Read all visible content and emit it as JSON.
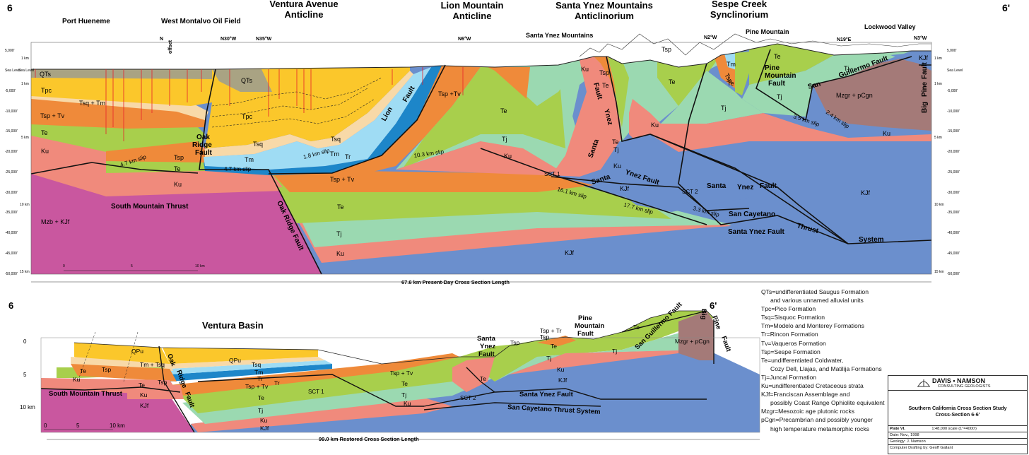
{
  "top": {
    "end_left": "6",
    "end_right": "6'",
    "headings": {
      "port_hueneme": "Port Hueneme",
      "west_montalvo": "West Montalvo Oil Field",
      "ventura_1": "Ventura Avenue",
      "ventura_2": "Anticline",
      "lion_1": "Lion Mountain",
      "lion_2": "Anticline",
      "syinez_1": "Santa Ynez Mountains",
      "syinez_2": "Anticlinorium",
      "sespe_1": "Sespe Creek",
      "sespe_2": "Synclinorium",
      "santa_ynez_mtns": "Santa Ynez Mountains",
      "pine_mountain": "Pine Mountain",
      "lockwood": "Lockwood Valley"
    },
    "bearings": {
      "n": "N",
      "offset": "offset",
      "n30w": "N30°W",
      "n35w": "N35°W",
      "n6w": "N6°W",
      "n2w": "N2°W",
      "n19e": "N19°E",
      "n3w": "N3°W"
    },
    "scale_ft": [
      "5,000'",
      "Sea Level",
      "-5,000'",
      "-10,000'",
      "-15,000'",
      "-20,000'",
      "-25,000'",
      "-30,000'",
      "-35,000'",
      "-40,000'",
      "-45,000'",
      "-50,000'"
    ],
    "scale_km": [
      "1 km",
      "Sea Level",
      "1 km",
      "5 km",
      "10 km",
      "15 km"
    ],
    "scale_ft_right": [
      "5,000'",
      "Sea Level",
      "-5,000'",
      "-10,000'",
      "-15,000'",
      "-20,000'",
      "-25,000'",
      "-30,000'",
      "-35,000'",
      "-40,000'",
      "-45,000'",
      "-50,000'"
    ],
    "scale_km_right": [
      "1 km",
      "1 km",
      "5 km",
      "10 km",
      "15 km"
    ],
    "scale_bar": [
      "0",
      "5",
      "10 km"
    ],
    "units": {
      "qts": "QTs",
      "tpc_left": "Tpc",
      "tsq_tm": "Tsq + Tm",
      "tsp_tv_left": "Tsp + Tv",
      "te_left": "Te",
      "ku_left": "Ku",
      "tsp_mid": "Tsp",
      "te_mid": "Te",
      "ku_mid": "Ku",
      "mzb_kjf": "Mzb + KJf",
      "qts_mid": "QTs",
      "tpc_mid": "Tpc",
      "tsq": "Tsq",
      "tsq2": "Tsq",
      "tm": "Tm",
      "tm2": "Tm",
      "tr": "Tr",
      "tsp_tv_lion": "Tsp +Tv",
      "te_lion": "Te",
      "tj_lion": "Tj",
      "ku_lion": "Ku",
      "tsp_tv_deep": "Tsp + Tv",
      "te_deep": "Te",
      "tj_deep": "Tj",
      "ku_deep": "Ku",
      "kjf_deep": "KJf",
      "ku_syn": "Ku",
      "tsp_syn": "Tsp",
      "te_syn": "Te",
      "tj_syn": "Tj",
      "ku_syn2": "Ku",
      "te_syn2": "Te",
      "tj_syn2": "Tj",
      "ku_syn3": "Ku",
      "kjf_syn": "KJf",
      "tsp_top": "Tsp",
      "te_sespe": "Te",
      "tm_sespe": "Tm",
      "te_sespe2": "Te",
      "tsp_sespe": "Tsp",
      "tj_sespe": "Tj",
      "ku_sespe": "Ku",
      "te_pine": "Te",
      "tj_pine": "Tj",
      "tj_pine2": "Tj",
      "mzgr": "Mzgr + pCgn",
      "kjf_lock": "KJf",
      "ku_right": "Ku",
      "kjf_right": "KJf"
    },
    "faults": {
      "oak_ridge_1": "Oak",
      "oak_ridge_2": "Ridge",
      "oak_ridge_3": "Fault",
      "oak_ridge_deep": "Oak Ridge Fault",
      "south_mtn": "South Mountain Thrust",
      "lion_fault_1": "Lion",
      "lion_fault_2": "Fault",
      "sy_fault_1": "Ynez",
      "sy_fault_2": "Fault",
      "sy_fault_3": "Santa",
      "sy_main_1": "Santa",
      "sy_main_2": "Ynez Fault",
      "sct1": "SCT 1",
      "sct2": "SCT 2",
      "sy_fault_r1": "Santa",
      "sy_fault_r2": "Ynez",
      "sy_fault_r3": "Fault",
      "san_cay": "San Cayetano",
      "thrust": "Thrust",
      "system": "System",
      "sy_fault_low": "Santa Ynez Fault",
      "pine_fault_1": "Pine",
      "pine_fault_2": "Mountain",
      "pine_fault_3": "Fault",
      "sg_fault_1": "San",
      "sg_fault_2": "Guillermo Fault",
      "big_pine_1": "Big",
      "big_pine_2": "Pine",
      "big_pine_3": "Fault"
    },
    "slips": {
      "s47a": "4.7 km slip",
      "s47b": "4.7 km slip",
      "s18": "1.8 km slip",
      "s103": "10.3 km slip",
      "s161": "16.1 km slip",
      "s177": "17.7 km slip",
      "s33": "3.3 km slip",
      "s35": "3.5 km slip",
      "s24": "2.4 km slip"
    },
    "length": "67.6 km Present-Day Cross Section Length"
  },
  "bottom": {
    "end_left": "6",
    "end_right": "6'",
    "heading": "Ventura Basin",
    "scale_left": [
      "0",
      "5",
      "10 km"
    ],
    "scale_bar": [
      "0",
      "5",
      "10 km"
    ],
    "labels": {
      "qpu1": "QPu",
      "qpu2": "QPu",
      "tm_tsq": "Tm + Tsq",
      "tsq": "Tsq",
      "tm": "Tm",
      "tr": "Tr",
      "tr2": "Tr",
      "te1": "Te",
      "tsp1": "Tsp",
      "ku1": "Ku",
      "tsp2": "Tsp",
      "te2": "Te",
      "tsp_tv": "Tsp + Tv",
      "tsp_tv2": "Tsp + Tv",
      "te3": "Te",
      "te4": "Te",
      "tj1": "Tj",
      "tj2": "Tj",
      "ku2": "Ku",
      "ku3": "Ku",
      "ku4": "Ku",
      "kjf1": "KJf",
      "kjf2": "KJf",
      "te5": "Te",
      "tsp3": "Tsp",
      "tsp_tr": "Tsp + Tr",
      "tsp4": "Tsp",
      "te6": "Te",
      "tj3": "Tj",
      "ku5": "Ku",
      "kjf3": "KJf",
      "tj4": "Tj",
      "te7": "Te",
      "mzgr": "Mzgr + pCgn"
    },
    "faults": {
      "oak": "Oak",
      "ridge": "Ridge",
      "fault": "Fault",
      "south_mtn": "South Mountain Thrust",
      "sct1": "SCT 1",
      "sct2": "SCT 2",
      "sy1": "Santa",
      "sy2": "Ynez",
      "sy3": "Fault",
      "pine1": "Pine",
      "pine2": "Mountain",
      "pine3": "Fault",
      "sy_fault": "Santa Ynez Fault",
      "san_cay": "San   Cayetano Thrust System",
      "sg": "San Guillermo Fault",
      "big": "Big",
      "pine": "Pine",
      "fault2": "Fault"
    },
    "length": "99.0 km Restored Cross Section Length"
  },
  "legend": [
    {
      "text": "QTs=undifferentiated Saugus Formation",
      "indent": false
    },
    {
      "text": "and various unnamed alluvial units",
      "indent": true
    },
    {
      "text": "Tpc=Pico Formation",
      "indent": false
    },
    {
      "text": "Tsq=Sisquoc Formation",
      "indent": false
    },
    {
      "text": "Tm=Modelo and Monterey Formations",
      "indent": false
    },
    {
      "text": "Tr=Rincon Formation",
      "indent": false
    },
    {
      "text": "Tv=Vaqueros Formation",
      "indent": false
    },
    {
      "text": "Tsp=Sespe Formation",
      "indent": false
    },
    {
      "text": "Te=undifferentiated Coldwater,",
      "indent": false
    },
    {
      "text": "Cozy Dell, Llajas, and Matilija Formations",
      "indent": true
    },
    {
      "text": "Tj=Juncal Formation",
      "indent": false
    },
    {
      "text": "Ku=undifferentiated Cretaceous strata",
      "indent": false
    },
    {
      "text": "KJf=Franciscan Assemblage and",
      "indent": false
    },
    {
      "text": "possibly Coast Range Ophiolite equivalent",
      "indent": true
    },
    {
      "text": "Mzgr=Mesozoic age plutonic rocks",
      "indent": false
    },
    {
      "text": "pCgn=Precambrian and possibly younger",
      "indent": false
    },
    {
      "text": "high temperature metamorphic rocks",
      "indent": true
    }
  ],
  "title_block": {
    "firm": "DAVIS • NAMSON",
    "firm_sub": "CONSULTING GEOLOGISTS",
    "study_1": "Southern California Cross Section Study",
    "study_2": "Cross-Section 6-6'",
    "plate": "Plate VI.",
    "scale": "1:48,000 scale   (1\"=4000')",
    "date": "Date: Nov., 1998",
    "geology": "Geology: J. Namson",
    "drafting": "Computer Drafting by: Geoff Gallant"
  },
  "colors": {
    "qts": "#a9a383",
    "tpc": "#fbc72b",
    "tsq": "#f8d9a8",
    "tm": "#9fdcf4",
    "tr": "#1d86c9",
    "tsp": "#ef8a3a",
    "te": "#a8cf4c",
    "tj": "#9bd9b1",
    "ku": "#f08a7c",
    "kjf": "#6b8fcd",
    "mzb": "#c9579f",
    "mzgr": "#a47a78",
    "well": "#e8202a"
  }
}
